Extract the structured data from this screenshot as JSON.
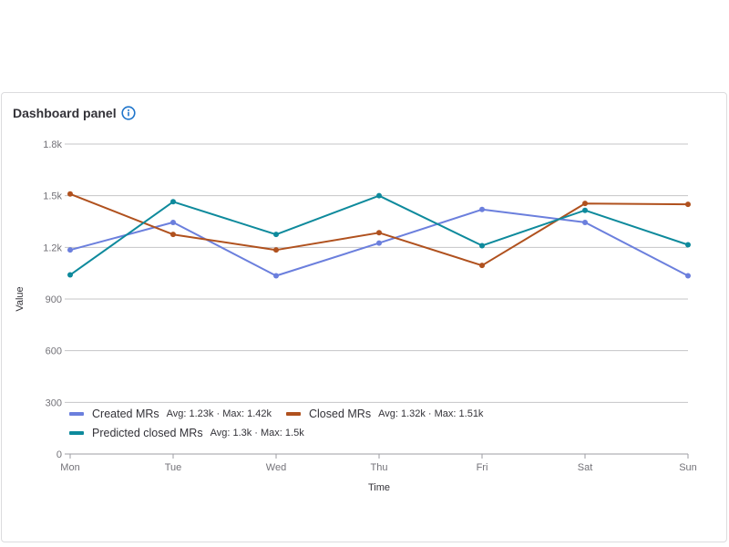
{
  "panel": {
    "title": "Dashboard panel",
    "info_icon": "info-circle-icon"
  },
  "chart_data": {
    "type": "line",
    "categories": [
      "Mon",
      "Tue",
      "Wed",
      "Thu",
      "Fri",
      "Sat",
      "Sun"
    ],
    "xlabel": "Time",
    "ylabel": "Value",
    "ylim": [
      0,
      1800
    ],
    "yticks": [
      0,
      300,
      600,
      900,
      1200,
      1500,
      1800
    ],
    "ytick_labels": [
      "0",
      "300",
      "600",
      "900",
      "1.2k",
      "1.5k",
      "1.8k"
    ],
    "grid": true,
    "legend_position": "bottom-left",
    "series": [
      {
        "name": "Created MRs",
        "color": "#6b7fdd",
        "values": [
          1185,
          1345,
          1035,
          1225,
          1420,
          1345,
          1035
        ],
        "stats": "Avg: 1.23k · Max: 1.42k"
      },
      {
        "name": "Closed MRs",
        "color": "#b0511e",
        "values": [
          1510,
          1275,
          1185,
          1285,
          1095,
          1455,
          1450
        ],
        "stats": "Avg: 1.32k · Max: 1.51k"
      },
      {
        "name": "Predicted closed MRs",
        "color": "#0e8a9c",
        "values": [
          1040,
          1465,
          1275,
          1500,
          1210,
          1415,
          1215
        ],
        "stats": "Avg: 1.3k · Max: 1.5k"
      }
    ]
  }
}
